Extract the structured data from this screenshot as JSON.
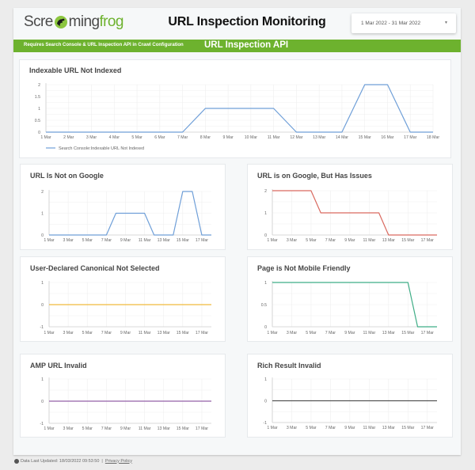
{
  "header": {
    "logo": {
      "part1": "Scre",
      "part2": "ming",
      "part3": "frog"
    },
    "title": "URL Inspection Monitoring",
    "date_range": {
      "value": "1 Mar 2022 - 31 Mar 2022",
      "caret": "▾"
    }
  },
  "banner": {
    "requirement_text": "Requires Search Console & URL Inspection API in Crawl Configuration",
    "section_title": "URL Inspection API",
    "color": "#6db22e"
  },
  "footer": {
    "updated_text": "Data Last Updated: 18/03/2022 09:53:50",
    "separator": "|",
    "privacy_link": "Privacy Policy"
  },
  "chart_data": [
    {
      "type": "line",
      "title": "Indexable URL Not Indexed",
      "x": [
        "1 Mar",
        "2 Mar",
        "3 Mar",
        "4 Mar",
        "5 Mar",
        "6 Mar",
        "7 Mar",
        "8 Mar",
        "9 Mar",
        "10 Mar",
        "11 Mar",
        "12 Mar",
        "13 Mar",
        "14 Mar",
        "15 Mar",
        "16 Mar",
        "17 Mar",
        "18 Mar"
      ],
      "xtick_step": 1,
      "values": [
        0,
        0,
        0,
        0,
        0,
        0,
        0,
        1,
        1,
        1,
        1,
        0,
        0,
        0,
        2,
        2,
        0,
        0
      ],
      "yticks": [
        0,
        0.5,
        1,
        1.5,
        2
      ],
      "ylim": [
        0,
        2
      ],
      "color": "#6f9fd8",
      "legend": "Search Console:Indexable URL Not Indexed",
      "grid": true
    },
    {
      "type": "line",
      "title": "URL Is Not on Google",
      "x": [
        "1 Mar",
        "2 Mar",
        "3 Mar",
        "4 Mar",
        "5 Mar",
        "6 Mar",
        "7 Mar",
        "8 Mar",
        "9 Mar",
        "10 Mar",
        "11 Mar",
        "12 Mar",
        "13 Mar",
        "14 Mar",
        "15 Mar",
        "16 Mar",
        "17 Mar",
        "18 Mar"
      ],
      "xtick_step": 2,
      "values": [
        0,
        0,
        0,
        0,
        0,
        0,
        0,
        1,
        1,
        1,
        1,
        0,
        0,
        0,
        2,
        2,
        0,
        0
      ],
      "yticks": [
        0,
        1,
        2
      ],
      "ylim": [
        0,
        2
      ],
      "color": "#6f9fd8",
      "grid": true
    },
    {
      "type": "line",
      "title": "URL is on Google, But Has Issues",
      "x": [
        "1 Mar",
        "2 Mar",
        "3 Mar",
        "4 Mar",
        "5 Mar",
        "6 Mar",
        "7 Mar",
        "8 Mar",
        "9 Mar",
        "10 Mar",
        "11 Mar",
        "12 Mar",
        "13 Mar",
        "14 Mar",
        "15 Mar",
        "16 Mar",
        "17 Mar",
        "18 Mar"
      ],
      "xtick_step": 2,
      "values": [
        2,
        2,
        2,
        2,
        2,
        1,
        1,
        1,
        1,
        1,
        1,
        1,
        0,
        0,
        0,
        0,
        0,
        0
      ],
      "yticks": [
        0,
        1,
        2
      ],
      "ylim": [
        0,
        2
      ],
      "color": "#d9695f",
      "grid": true
    },
    {
      "type": "line",
      "title": "User-Declared Canonical Not Selected",
      "x": [
        "1 Mar",
        "2 Mar",
        "3 Mar",
        "4 Mar",
        "5 Mar",
        "6 Mar",
        "7 Mar",
        "8 Mar",
        "9 Mar",
        "10 Mar",
        "11 Mar",
        "12 Mar",
        "13 Mar",
        "14 Mar",
        "15 Mar",
        "16 Mar",
        "17 Mar",
        "18 Mar"
      ],
      "xtick_step": 2,
      "values": [
        0,
        0,
        0,
        0,
        0,
        0,
        0,
        0,
        0,
        0,
        0,
        0,
        0,
        0,
        0,
        0,
        0,
        0
      ],
      "yticks": [
        -1,
        0,
        1
      ],
      "ylim": [
        -1,
        1
      ],
      "color": "#f0bb3c",
      "grid": true
    },
    {
      "type": "line",
      "title": "Page is Not Mobile Friendly",
      "x": [
        "1 Mar",
        "2 Mar",
        "3 Mar",
        "4 Mar",
        "5 Mar",
        "6 Mar",
        "7 Mar",
        "8 Mar",
        "9 Mar",
        "10 Mar",
        "11 Mar",
        "12 Mar",
        "13 Mar",
        "14 Mar",
        "15 Mar",
        "16 Mar",
        "17 Mar",
        "18 Mar"
      ],
      "xtick_step": 2,
      "values": [
        1,
        1,
        1,
        1,
        1,
        1,
        1,
        1,
        1,
        1,
        1,
        1,
        1,
        1,
        1,
        0,
        0,
        0
      ],
      "yticks": [
        0,
        0.5,
        1
      ],
      "ylim": [
        0,
        1
      ],
      "color": "#3fad86",
      "grid": true
    },
    {
      "type": "line",
      "title": "AMP URL Invalid",
      "x": [
        "1 Mar",
        "2 Mar",
        "3 Mar",
        "4 Mar",
        "5 Mar",
        "6 Mar",
        "7 Mar",
        "8 Mar",
        "9 Mar",
        "10 Mar",
        "11 Mar",
        "12 Mar",
        "13 Mar",
        "14 Mar",
        "15 Mar",
        "16 Mar",
        "17 Mar",
        "18 Mar"
      ],
      "xtick_step": 2,
      "values": [
        0,
        0,
        0,
        0,
        0,
        0,
        0,
        0,
        0,
        0,
        0,
        0,
        0,
        0,
        0,
        0,
        0,
        0
      ],
      "yticks": [
        -1,
        0,
        1
      ],
      "ylim": [
        -1,
        1
      ],
      "color": "#9462a8",
      "grid": true
    },
    {
      "type": "line",
      "title": "Rich Result Invalid",
      "x": [
        "1 Mar",
        "2 Mar",
        "3 Mar",
        "4 Mar",
        "5 Mar",
        "6 Mar",
        "7 Mar",
        "8 Mar",
        "9 Mar",
        "10 Mar",
        "11 Mar",
        "12 Mar",
        "13 Mar",
        "14 Mar",
        "15 Mar",
        "16 Mar",
        "17 Mar",
        "18 Mar"
      ],
      "xtick_step": 2,
      "values": [
        0,
        0,
        0,
        0,
        0,
        0,
        0,
        0,
        0,
        0,
        0,
        0,
        0,
        0,
        0,
        0,
        0,
        0
      ],
      "yticks": [
        -1,
        0,
        1
      ],
      "ylim": [
        -1,
        1
      ],
      "color": "#555555",
      "grid": true
    }
  ]
}
